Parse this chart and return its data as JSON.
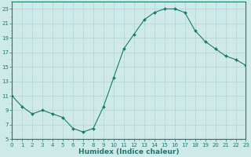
{
  "x": [
    0,
    1,
    2,
    3,
    4,
    5,
    6,
    7,
    8,
    9,
    10,
    11,
    12,
    13,
    14,
    15,
    16,
    17,
    18,
    19,
    20,
    21,
    22,
    23
  ],
  "y": [
    11,
    9.5,
    8.5,
    9,
    8.5,
    8,
    6.5,
    6,
    6.5,
    9.5,
    13.5,
    17.5,
    19.5,
    21.5,
    22.5,
    23,
    23,
    22.5,
    20,
    18.5,
    17.5,
    16.5,
    16,
    15.2
  ],
  "line_color": "#1a7a6e",
  "marker": "D",
  "marker_size": 2.0,
  "bg_color": "#ceeae8",
  "xlabel": "Humidex (Indice chaleur)",
  "xlim": [
    0,
    23
  ],
  "ylim": [
    5,
    24
  ],
  "yticks": [
    5,
    7,
    9,
    11,
    13,
    15,
    17,
    19,
    21,
    23
  ],
  "xticks": [
    0,
    1,
    2,
    3,
    4,
    5,
    6,
    7,
    8,
    9,
    10,
    11,
    12,
    13,
    14,
    15,
    16,
    17,
    18,
    19,
    20,
    21,
    22,
    23
  ],
  "tick_color": "#1a7a6e",
  "label_color": "#1a7a6e",
  "axis_color": "#1a7a6e",
  "major_grid_color": "#b8d8d4",
  "minor_grid_color": "#dbecea"
}
